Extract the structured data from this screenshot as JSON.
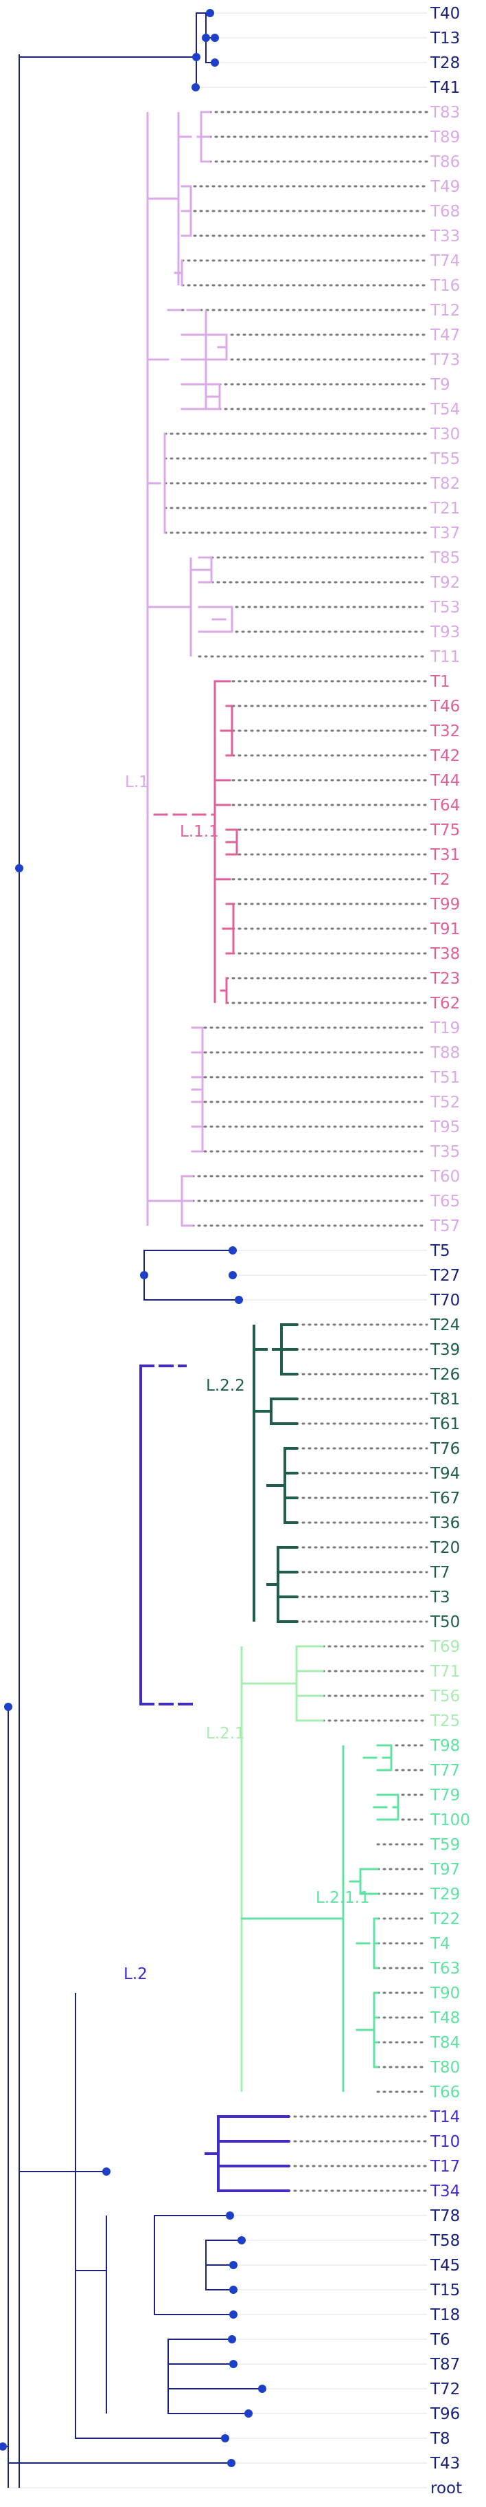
{
  "colors": {
    "base": "#1a237e",
    "node": "#1e40c8",
    "L": "#3f2bd0",
    "L.1": "#dba9e8",
    "L.1.1": "#e0609a",
    "L.2.1": "#a9ecb0",
    "L.2.1.1": "#5fe3a1",
    "L.2.2": "#1f5e4e",
    "guide": "#e6e6e6"
  },
  "tips": [
    {
      "label": "T40",
      "color": "base"
    },
    {
      "label": "T13",
      "color": "base"
    },
    {
      "label": "T28",
      "color": "base"
    },
    {
      "label": "T41",
      "color": "base"
    },
    {
      "label": "T83",
      "color": "L.1"
    },
    {
      "label": "T89",
      "color": "L.1"
    },
    {
      "label": "T86",
      "color": "L.1"
    },
    {
      "label": "T49",
      "color": "L.1"
    },
    {
      "label": "T68",
      "color": "L.1"
    },
    {
      "label": "T33",
      "color": "L.1"
    },
    {
      "label": "T74",
      "color": "L.1"
    },
    {
      "label": "T16",
      "color": "L.1"
    },
    {
      "label": "T12",
      "color": "L.1"
    },
    {
      "label": "T47",
      "color": "L.1"
    },
    {
      "label": "T73",
      "color": "L.1"
    },
    {
      "label": "T9",
      "color": "L.1"
    },
    {
      "label": "T54",
      "color": "L.1"
    },
    {
      "label": "T30",
      "color": "L.1"
    },
    {
      "label": "T55",
      "color": "L.1"
    },
    {
      "label": "T82",
      "color": "L.1"
    },
    {
      "label": "T21",
      "color": "L.1"
    },
    {
      "label": "T37",
      "color": "L.1"
    },
    {
      "label": "T85",
      "color": "L.1"
    },
    {
      "label": "T92",
      "color": "L.1"
    },
    {
      "label": "T53",
      "color": "L.1"
    },
    {
      "label": "T93",
      "color": "L.1"
    },
    {
      "label": "T11",
      "color": "L.1"
    },
    {
      "label": "T1",
      "color": "L.1.1"
    },
    {
      "label": "T46",
      "color": "L.1.1"
    },
    {
      "label": "T32",
      "color": "L.1.1"
    },
    {
      "label": "T42",
      "color": "L.1.1"
    },
    {
      "label": "T44",
      "color": "L.1.1"
    },
    {
      "label": "T64",
      "color": "L.1.1"
    },
    {
      "label": "T75",
      "color": "L.1.1"
    },
    {
      "label": "T31",
      "color": "L.1.1"
    },
    {
      "label": "T2",
      "color": "L.1.1"
    },
    {
      "label": "T99",
      "color": "L.1.1"
    },
    {
      "label": "T91",
      "color": "L.1.1"
    },
    {
      "label": "T38",
      "color": "L.1.1"
    },
    {
      "label": "T23",
      "color": "L.1.1"
    },
    {
      "label": "T62",
      "color": "L.1.1"
    },
    {
      "label": "T19",
      "color": "L.1"
    },
    {
      "label": "T88",
      "color": "L.1"
    },
    {
      "label": "T51",
      "color": "L.1"
    },
    {
      "label": "T52",
      "color": "L.1"
    },
    {
      "label": "T95",
      "color": "L.1"
    },
    {
      "label": "T35",
      "color": "L.1"
    },
    {
      "label": "T60",
      "color": "L.1"
    },
    {
      "label": "T65",
      "color": "L.1"
    },
    {
      "label": "T57",
      "color": "L.1"
    },
    {
      "label": "T5",
      "color": "base"
    },
    {
      "label": "T27",
      "color": "base"
    },
    {
      "label": "T70",
      "color": "base"
    },
    {
      "label": "T24",
      "color": "L.2.2"
    },
    {
      "label": "T39",
      "color": "L.2.2"
    },
    {
      "label": "T26",
      "color": "L.2.2"
    },
    {
      "label": "T81",
      "color": "L.2.2"
    },
    {
      "label": "T61",
      "color": "L.2.2"
    },
    {
      "label": "T76",
      "color": "L.2.2"
    },
    {
      "label": "T94",
      "color": "L.2.2"
    },
    {
      "label": "T67",
      "color": "L.2.2"
    },
    {
      "label": "T36",
      "color": "L.2.2"
    },
    {
      "label": "T20",
      "color": "L.2.2"
    },
    {
      "label": "T7",
      "color": "L.2.2"
    },
    {
      "label": "T3",
      "color": "L.2.2"
    },
    {
      "label": "T50",
      "color": "L.2.2"
    },
    {
      "label": "T69",
      "color": "L.2.1"
    },
    {
      "label": "T71",
      "color": "L.2.1"
    },
    {
      "label": "T56",
      "color": "L.2.1"
    },
    {
      "label": "T25",
      "color": "L.2.1"
    },
    {
      "label": "T98",
      "color": "L.2.1.1"
    },
    {
      "label": "T77",
      "color": "L.2.1.1"
    },
    {
      "label": "T79",
      "color": "L.2.1.1"
    },
    {
      "label": "T100",
      "color": "L.2.1.1"
    },
    {
      "label": "T59",
      "color": "L.2.1.1"
    },
    {
      "label": "T97",
      "color": "L.2.1.1"
    },
    {
      "label": "T29",
      "color": "L.2.1.1"
    },
    {
      "label": "T22",
      "color": "L.2.1.1"
    },
    {
      "label": "T4",
      "color": "L.2.1.1"
    },
    {
      "label": "T63",
      "color": "L.2.1.1"
    },
    {
      "label": "T90",
      "color": "L.2.1.1"
    },
    {
      "label": "T48",
      "color": "L.2.1.1"
    },
    {
      "label": "T84",
      "color": "L.2.1.1"
    },
    {
      "label": "T80",
      "color": "L.2.1.1"
    },
    {
      "label": "T66",
      "color": "L.2.1.1"
    },
    {
      "label": "T14",
      "color": "L"
    },
    {
      "label": "T10",
      "color": "L"
    },
    {
      "label": "T17",
      "color": "L"
    },
    {
      "label": "T34",
      "color": "L"
    },
    {
      "label": "T78",
      "color": "base"
    },
    {
      "label": "T58",
      "color": "base"
    },
    {
      "label": "T45",
      "color": "base"
    },
    {
      "label": "T15",
      "color": "base"
    },
    {
      "label": "T18",
      "color": "base"
    },
    {
      "label": "T6",
      "color": "base"
    },
    {
      "label": "T87",
      "color": "base"
    },
    {
      "label": "T72",
      "color": "base"
    },
    {
      "label": "T96",
      "color": "base"
    },
    {
      "label": "T8",
      "color": "base"
    },
    {
      "label": "T43",
      "color": "base"
    },
    {
      "label": "root",
      "color": "base"
    }
  ],
  "clade_labels": [
    {
      "label": "L.1",
      "color": "L.1"
    },
    {
      "label": "L.1.1",
      "color": "L.1.1"
    },
    {
      "label": "L.2",
      "color": "L"
    },
    {
      "label": "L.2.2",
      "color": "L.2.2"
    },
    {
      "label": "L.2.1",
      "color": "L.2.1"
    },
    {
      "label": "L.2.1.1",
      "color": "L.2.1.1"
    }
  ]
}
